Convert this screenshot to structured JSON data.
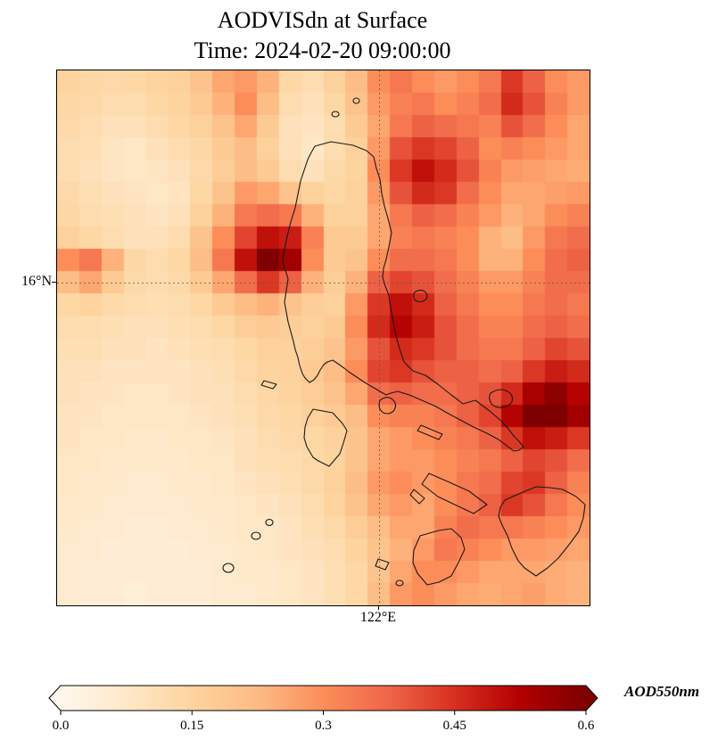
{
  "title": {
    "line1": "AODVISdn at Surface",
    "line2": "Time: 2024-02-20 09:00:00"
  },
  "axes": {
    "y_tick": "16°N",
    "x_tick": "122°E"
  },
  "colorbar": {
    "label": "AOD550nm",
    "ticks": [
      "0.0",
      "0.15",
      "0.3",
      "0.45",
      "0.6"
    ],
    "min": 0.0,
    "max": 0.6,
    "extend": "both"
  },
  "chart_data": {
    "type": "heatmap",
    "title": "AODVISdn at Surface",
    "subtitle": "Time: 2024-02-20 09:00:00",
    "value_label": "AOD550nm",
    "vmin": 0.0,
    "vmax": 0.6,
    "grid_rows": 24,
    "grid_cols": 24,
    "y_tick_labels": [
      "16°N"
    ],
    "x_tick_labels": [
      "122°E"
    ],
    "y_tick_fracs": [
      0.397
    ],
    "x_tick_fracs": [
      0.605
    ],
    "grid_on": true,
    "legend_position": "bottom-colorbar",
    "colormap_stops": [
      {
        "t": 0.0,
        "c": "#fff7ec"
      },
      {
        "t": 0.125,
        "c": "#fee8c8"
      },
      {
        "t": 0.25,
        "c": "#fdd49e"
      },
      {
        "t": 0.375,
        "c": "#fdbb84"
      },
      {
        "t": 0.5,
        "c": "#fc8d59"
      },
      {
        "t": 0.625,
        "c": "#ef6548"
      },
      {
        "t": 0.75,
        "c": "#d7301f"
      },
      {
        "t": 0.875,
        "c": "#b30000"
      },
      {
        "t": 1.0,
        "c": "#7f0000"
      }
    ],
    "values": [
      [
        0.15,
        0.14,
        0.13,
        0.14,
        0.15,
        0.16,
        0.2,
        0.26,
        0.28,
        0.24,
        0.14,
        0.12,
        0.16,
        0.22,
        0.3,
        0.34,
        0.3,
        0.28,
        0.3,
        0.34,
        0.44,
        0.38,
        0.3,
        0.28
      ],
      [
        0.14,
        0.13,
        0.12,
        0.12,
        0.14,
        0.15,
        0.18,
        0.24,
        0.3,
        0.22,
        0.12,
        0.1,
        0.14,
        0.2,
        0.28,
        0.32,
        0.34,
        0.3,
        0.32,
        0.36,
        0.46,
        0.4,
        0.32,
        0.28
      ],
      [
        0.13,
        0.12,
        0.1,
        0.1,
        0.12,
        0.14,
        0.16,
        0.2,
        0.26,
        0.18,
        0.1,
        0.09,
        0.12,
        0.18,
        0.26,
        0.34,
        0.38,
        0.36,
        0.34,
        0.32,
        0.4,
        0.36,
        0.3,
        0.26
      ],
      [
        0.12,
        0.11,
        0.09,
        0.08,
        0.1,
        0.12,
        0.14,
        0.18,
        0.22,
        0.16,
        0.1,
        0.08,
        0.12,
        0.16,
        0.28,
        0.4,
        0.44,
        0.42,
        0.38,
        0.3,
        0.32,
        0.3,
        0.28,
        0.26
      ],
      [
        0.12,
        0.1,
        0.09,
        0.08,
        0.09,
        0.1,
        0.13,
        0.17,
        0.22,
        0.18,
        0.12,
        0.1,
        0.13,
        0.15,
        0.3,
        0.44,
        0.5,
        0.46,
        0.4,
        0.32,
        0.28,
        0.27,
        0.26,
        0.25
      ],
      [
        0.13,
        0.11,
        0.1,
        0.09,
        0.08,
        0.09,
        0.14,
        0.2,
        0.28,
        0.26,
        0.2,
        0.16,
        0.14,
        0.16,
        0.28,
        0.4,
        0.46,
        0.44,
        0.36,
        0.3,
        0.26,
        0.26,
        0.27,
        0.28
      ],
      [
        0.14,
        0.12,
        0.11,
        0.1,
        0.09,
        0.1,
        0.16,
        0.24,
        0.34,
        0.36,
        0.34,
        0.24,
        0.16,
        0.16,
        0.26,
        0.34,
        0.38,
        0.36,
        0.32,
        0.28,
        0.24,
        0.26,
        0.3,
        0.32
      ],
      [
        0.16,
        0.14,
        0.12,
        0.1,
        0.1,
        0.12,
        0.2,
        0.3,
        0.42,
        0.5,
        0.48,
        0.32,
        0.18,
        0.18,
        0.26,
        0.32,
        0.34,
        0.32,
        0.3,
        0.24,
        0.22,
        0.28,
        0.34,
        0.36
      ],
      [
        0.3,
        0.34,
        0.24,
        0.14,
        0.12,
        0.14,
        0.22,
        0.34,
        0.5,
        0.6,
        0.55,
        0.3,
        0.18,
        0.2,
        0.3,
        0.36,
        0.36,
        0.34,
        0.3,
        0.24,
        0.24,
        0.3,
        0.36,
        0.38
      ],
      [
        0.22,
        0.26,
        0.18,
        0.13,
        0.12,
        0.13,
        0.18,
        0.26,
        0.36,
        0.44,
        0.38,
        0.24,
        0.17,
        0.24,
        0.38,
        0.42,
        0.4,
        0.36,
        0.32,
        0.28,
        0.28,
        0.32,
        0.36,
        0.36
      ],
      [
        0.14,
        0.15,
        0.13,
        0.12,
        0.11,
        0.12,
        0.14,
        0.18,
        0.22,
        0.24,
        0.2,
        0.17,
        0.16,
        0.28,
        0.44,
        0.5,
        0.46,
        0.38,
        0.34,
        0.3,
        0.3,
        0.34,
        0.36,
        0.34
      ],
      [
        0.12,
        0.12,
        0.11,
        0.1,
        0.1,
        0.11,
        0.12,
        0.14,
        0.17,
        0.18,
        0.17,
        0.16,
        0.18,
        0.3,
        0.46,
        0.52,
        0.48,
        0.4,
        0.36,
        0.32,
        0.32,
        0.36,
        0.38,
        0.36
      ],
      [
        0.11,
        0.11,
        0.1,
        0.1,
        0.09,
        0.1,
        0.11,
        0.12,
        0.14,
        0.16,
        0.16,
        0.17,
        0.2,
        0.28,
        0.4,
        0.46,
        0.44,
        0.4,
        0.36,
        0.34,
        0.34,
        0.38,
        0.42,
        0.4
      ],
      [
        0.1,
        0.1,
        0.09,
        0.09,
        0.09,
        0.09,
        0.1,
        0.11,
        0.13,
        0.15,
        0.16,
        0.18,
        0.22,
        0.3,
        0.42,
        0.44,
        0.4,
        0.38,
        0.38,
        0.36,
        0.38,
        0.44,
        0.48,
        0.46
      ],
      [
        0.1,
        0.09,
        0.09,
        0.08,
        0.08,
        0.09,
        0.1,
        0.1,
        0.12,
        0.14,
        0.15,
        0.17,
        0.2,
        0.26,
        0.36,
        0.38,
        0.36,
        0.36,
        0.38,
        0.4,
        0.46,
        0.54,
        0.58,
        0.52
      ],
      [
        0.09,
        0.09,
        0.08,
        0.08,
        0.08,
        0.08,
        0.09,
        0.1,
        0.11,
        0.13,
        0.14,
        0.16,
        0.18,
        0.22,
        0.3,
        0.32,
        0.32,
        0.34,
        0.38,
        0.42,
        0.52,
        0.6,
        0.6,
        0.55
      ],
      [
        0.09,
        0.08,
        0.08,
        0.07,
        0.07,
        0.08,
        0.08,
        0.09,
        0.1,
        0.12,
        0.13,
        0.14,
        0.16,
        0.2,
        0.26,
        0.28,
        0.3,
        0.32,
        0.34,
        0.38,
        0.44,
        0.5,
        0.48,
        0.44
      ],
      [
        0.08,
        0.08,
        0.07,
        0.07,
        0.07,
        0.07,
        0.08,
        0.08,
        0.1,
        0.11,
        0.12,
        0.13,
        0.15,
        0.2,
        0.26,
        0.28,
        0.28,
        0.3,
        0.32,
        0.34,
        0.38,
        0.42,
        0.4,
        0.36
      ],
      [
        0.08,
        0.07,
        0.07,
        0.06,
        0.06,
        0.07,
        0.07,
        0.08,
        0.09,
        0.1,
        0.11,
        0.13,
        0.16,
        0.22,
        0.28,
        0.3,
        0.28,
        0.3,
        0.34,
        0.36,
        0.42,
        0.44,
        0.38,
        0.32
      ],
      [
        0.07,
        0.07,
        0.06,
        0.06,
        0.06,
        0.06,
        0.07,
        0.07,
        0.08,
        0.09,
        0.1,
        0.12,
        0.15,
        0.2,
        0.26,
        0.28,
        0.26,
        0.3,
        0.34,
        0.38,
        0.44,
        0.4,
        0.34,
        0.3
      ],
      [
        0.07,
        0.06,
        0.06,
        0.05,
        0.05,
        0.06,
        0.06,
        0.07,
        0.08,
        0.08,
        0.09,
        0.11,
        0.13,
        0.17,
        0.22,
        0.26,
        0.26,
        0.32,
        0.36,
        0.34,
        0.34,
        0.32,
        0.3,
        0.28
      ],
      [
        0.06,
        0.06,
        0.05,
        0.05,
        0.05,
        0.05,
        0.06,
        0.06,
        0.07,
        0.08,
        0.09,
        0.1,
        0.12,
        0.15,
        0.2,
        0.24,
        0.28,
        0.34,
        0.32,
        0.3,
        0.28,
        0.28,
        0.27,
        0.26
      ],
      [
        0.06,
        0.05,
        0.05,
        0.05,
        0.05,
        0.05,
        0.05,
        0.06,
        0.07,
        0.07,
        0.08,
        0.09,
        0.11,
        0.14,
        0.2,
        0.26,
        0.3,
        0.3,
        0.28,
        0.26,
        0.26,
        0.26,
        0.25,
        0.24
      ],
      [
        0.06,
        0.05,
        0.05,
        0.04,
        0.05,
        0.05,
        0.05,
        0.06,
        0.06,
        0.07,
        0.08,
        0.09,
        0.11,
        0.14,
        0.22,
        0.28,
        0.3,
        0.28,
        0.26,
        0.25,
        0.26,
        0.27,
        0.25,
        0.24
      ]
    ]
  }
}
